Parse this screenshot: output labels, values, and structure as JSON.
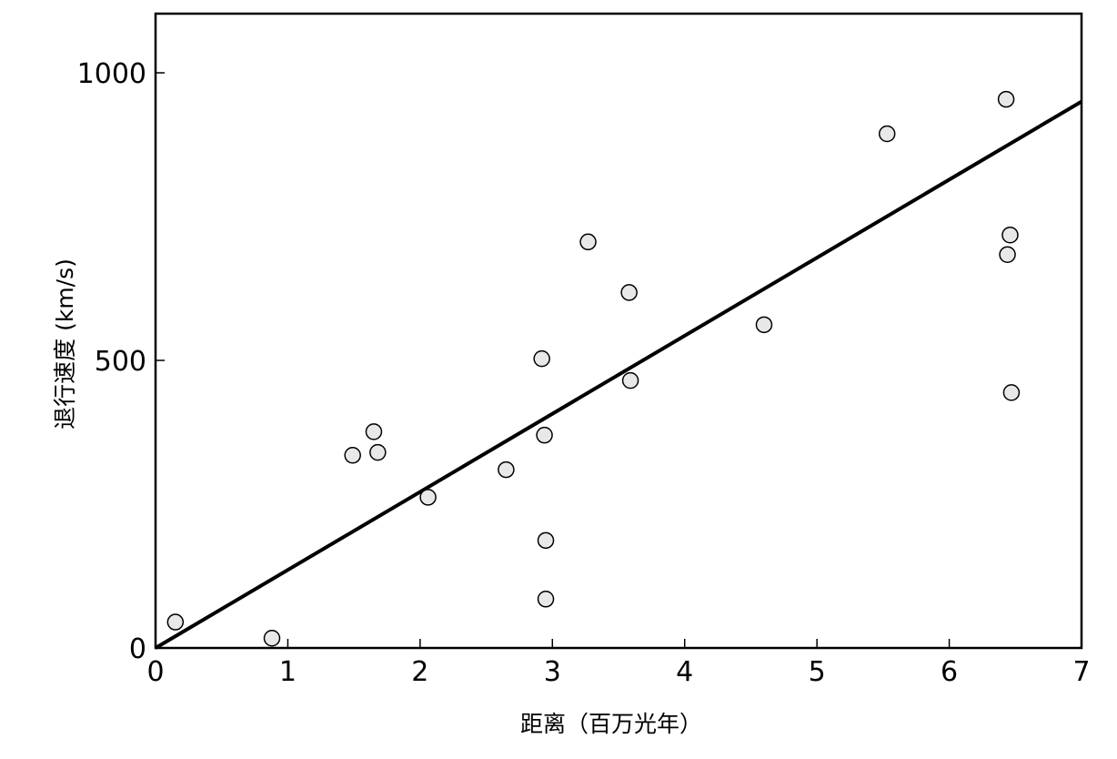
{
  "chart_data": {
    "type": "scatter",
    "title": "",
    "xlabel": "距离（百万光年）",
    "ylabel": "退行速度 (km/s)",
    "xlim": [
      0,
      7
    ],
    "ylim": [
      0,
      1100
    ],
    "x_ticks": [
      0,
      1,
      2,
      3,
      4,
      5,
      6,
      7
    ],
    "y_ticks": [
      0,
      500,
      1000
    ],
    "grid": false,
    "legend": "none",
    "colors": {
      "point_fill": "#e8e8e8",
      "point_stroke": "#000000",
      "line": "#000000"
    },
    "series": [
      {
        "points": [
          {
            "x": 0.15,
            "y": 45
          },
          {
            "x": 0.88,
            "y": 17
          },
          {
            "x": 1.49,
            "y": 335
          },
          {
            "x": 1.65,
            "y": 376
          },
          {
            "x": 1.68,
            "y": 340
          },
          {
            "x": 2.06,
            "y": 262
          },
          {
            "x": 2.65,
            "y": 310
          },
          {
            "x": 2.92,
            "y": 503
          },
          {
            "x": 2.94,
            "y": 370
          },
          {
            "x": 2.95,
            "y": 187
          },
          {
            "x": 2.95,
            "y": 85
          },
          {
            "x": 3.27,
            "y": 706
          },
          {
            "x": 3.58,
            "y": 618
          },
          {
            "x": 3.59,
            "y": 465
          },
          {
            "x": 4.6,
            "y": 562
          },
          {
            "x": 5.53,
            "y": 894
          },
          {
            "x": 6.43,
            "y": 954
          },
          {
            "x": 6.44,
            "y": 684
          },
          {
            "x": 6.46,
            "y": 718
          },
          {
            "x": 6.47,
            "y": 444
          }
        ]
      }
    ],
    "fit_line": {
      "x": [
        0,
        7
      ],
      "y": [
        0,
        950
      ]
    }
  }
}
